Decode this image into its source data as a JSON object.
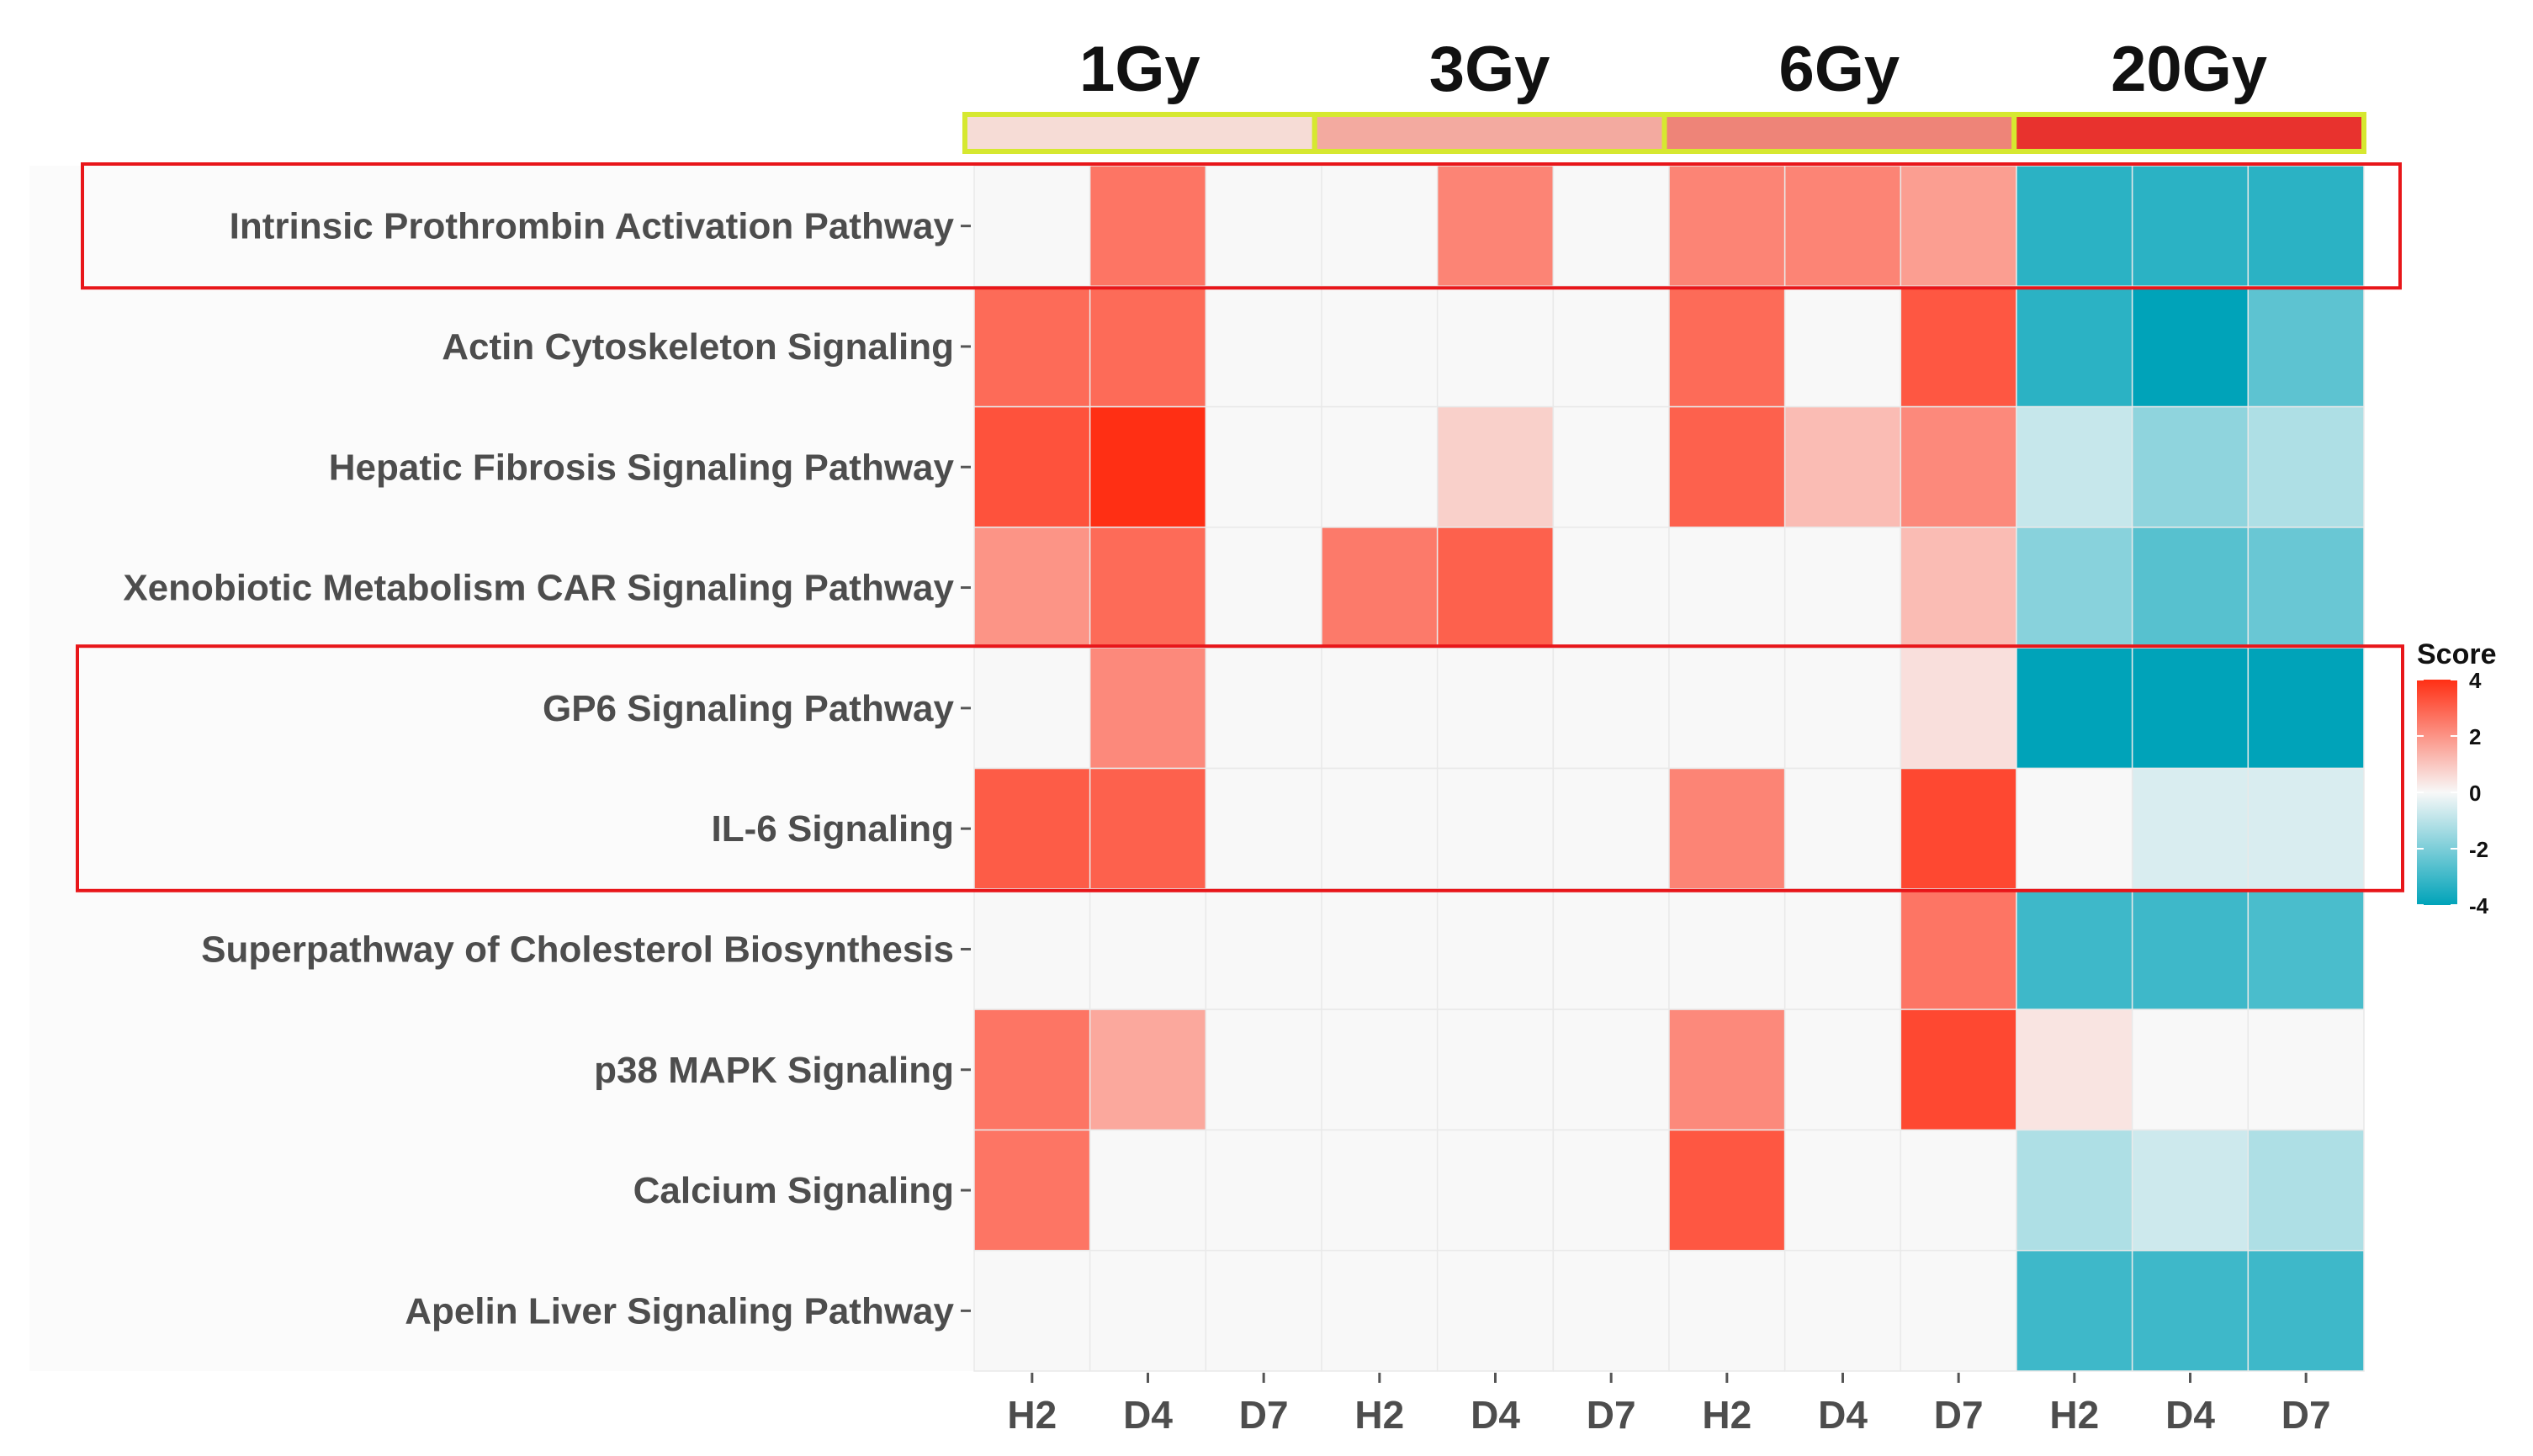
{
  "chart_data": {
    "type": "heatmap",
    "dose_groups": [
      {
        "label": "1Gy",
        "color": "#f6dcd6"
      },
      {
        "label": "3Gy",
        "color": "#f3aaa0"
      },
      {
        "label": "6Gy",
        "color": "#ee8478"
      },
      {
        "label": "20Gy",
        "color": "#e8322e"
      }
    ],
    "dose_bar_border": "#d6e830",
    "columns": [
      "H2",
      "D4",
      "D7",
      "H2",
      "D4",
      "D7",
      "H2",
      "D4",
      "D7",
      "H2",
      "D4",
      "D7"
    ],
    "rows": [
      "Intrinsic Prothrombin Activation Pathway",
      "Actin Cytoskeleton Signaling",
      "Hepatic Fibrosis Signaling Pathway",
      "Xenobiotic Metabolism CAR Signaling Pathway",
      "GP6 Signaling Pathway",
      "IL-6 Signaling",
      "Superpathway of Cholesterol Biosynthesis",
      "p38 MAPK Signaling",
      "Calcium Signaling",
      "Apelin Liver Signaling Pathway"
    ],
    "values": [
      [
        0,
        2.6,
        0,
        0,
        2.3,
        0,
        2.3,
        2.3,
        1.8,
        -3.3,
        -3.3,
        -3.3
      ],
      [
        2.8,
        2.8,
        0,
        0,
        0,
        0,
        2.8,
        0,
        3.2,
        -3.3,
        -4.1,
        -2.5
      ],
      [
        3.3,
        4.2,
        0,
        0,
        0.8,
        0,
        3.0,
        1.2,
        2.2,
        -0.8,
        -1.7,
        -1.2
      ],
      [
        2.0,
        2.8,
        0,
        2.5,
        3.0,
        0,
        0,
        0,
        1.2,
        -1.8,
        -2.6,
        -2.3
      ],
      [
        0,
        2.2,
        0,
        0,
        0,
        0,
        0,
        0,
        0.5,
        -4.2,
        -4.2,
        -4.2
      ],
      [
        3.1,
        3.0,
        0,
        0,
        0,
        0,
        2.3,
        0,
        3.5,
        0,
        -0.5,
        -0.5
      ],
      [
        0,
        0,
        0,
        0,
        0,
        0,
        0,
        0,
        2.6,
        -3.0,
        -3.0,
        -2.8
      ],
      [
        2.6,
        1.6,
        0,
        0,
        0,
        0,
        2.2,
        0,
        3.5,
        0.4,
        0,
        0
      ],
      [
        2.6,
        0,
        0,
        0,
        0,
        0,
        3.2,
        0,
        0,
        -1.2,
        -0.7,
        -1.2
      ],
      [
        0,
        0,
        0,
        0,
        0,
        0,
        0,
        0,
        0,
        -3.0,
        -3.0,
        -3.0
      ]
    ],
    "color_scale": {
      "min": -4,
      "max": 4,
      "low": "#00a3b9",
      "mid": "#f8f8f8",
      "high": "#ff2f14"
    },
    "legend": {
      "title": "Score",
      "ticks": [
        4,
        2,
        0,
        -2,
        -4
      ],
      "tick_labels": [
        "4",
        "2",
        "0",
        "-2",
        "-4"
      ],
      "position": "right"
    },
    "highlight_rows": [
      [
        0
      ],
      [
        4,
        5
      ]
    ],
    "highlight_color": "#e8161a"
  }
}
